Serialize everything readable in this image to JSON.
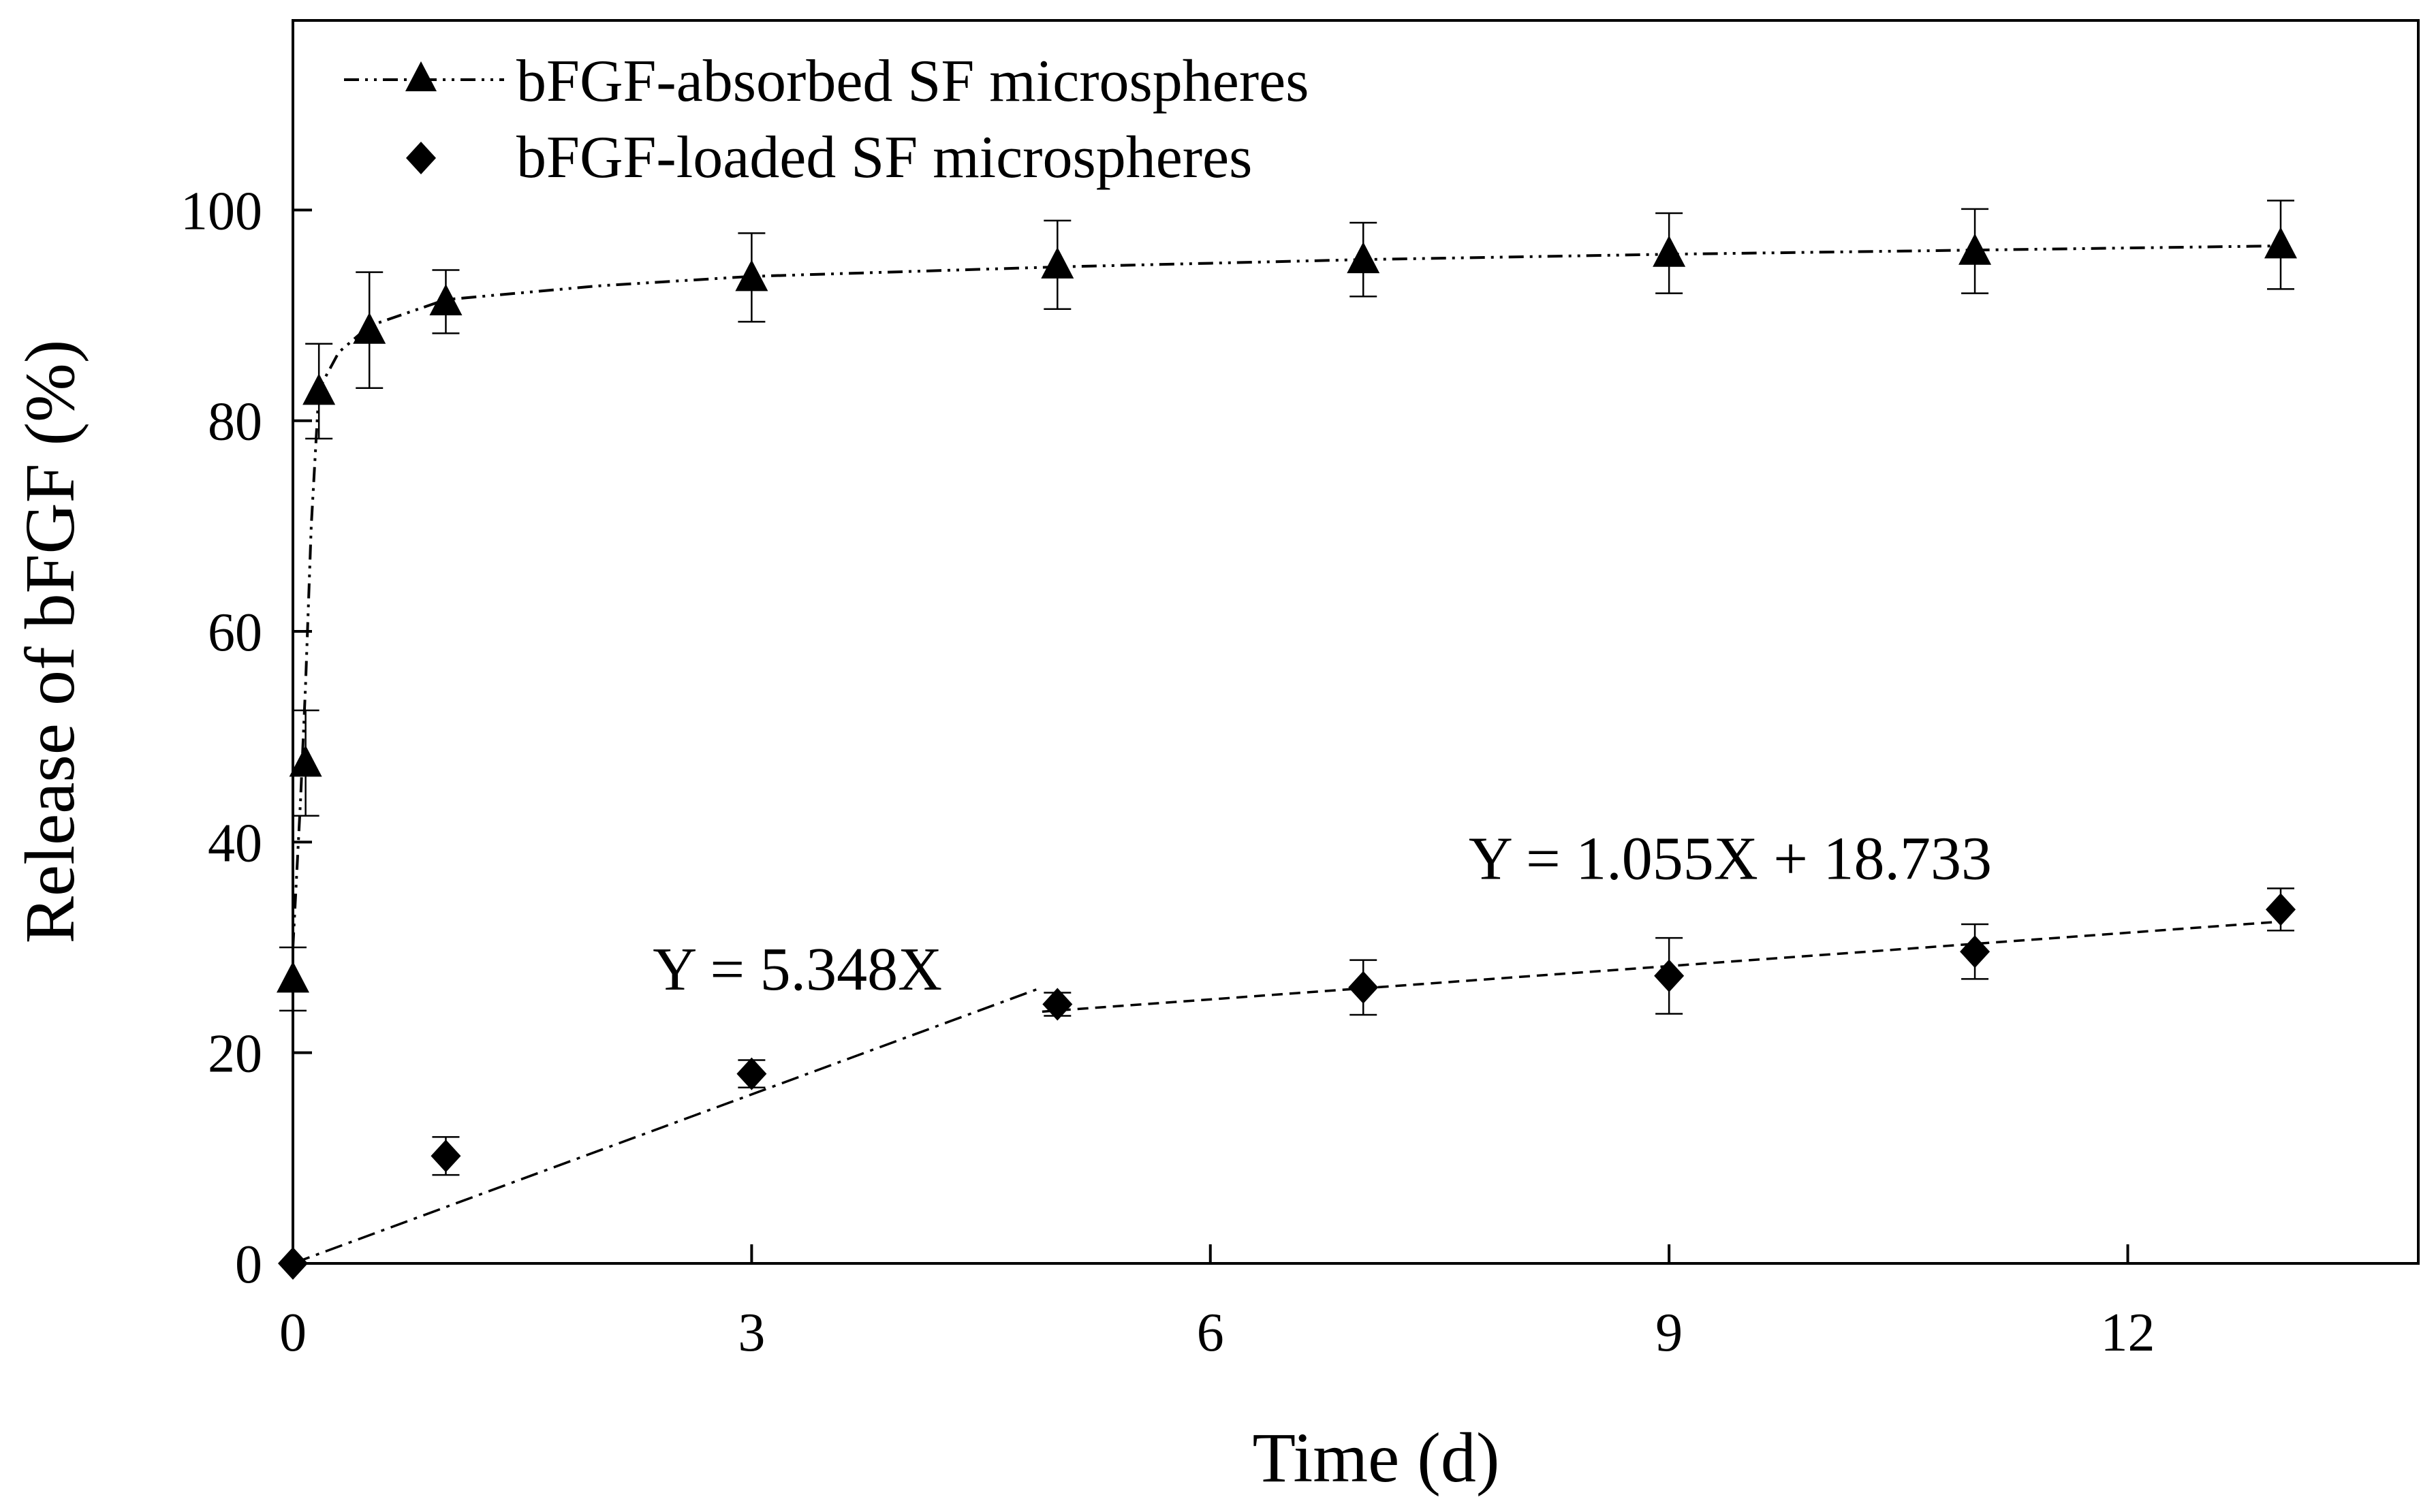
{
  "chart_data": {
    "type": "scatter",
    "title": "",
    "xlabel": "Time (d)",
    "ylabel": "Release of bFGF (%)",
    "xlim": [
      0,
      13.9
    ],
    "ylim": [
      0,
      118
    ],
    "x_ticks": [
      0,
      3,
      6,
      9,
      12
    ],
    "y_ticks": [
      0,
      20,
      40,
      60,
      80,
      100
    ],
    "grid": false,
    "legend_position": "top-left",
    "series": [
      {
        "name": "bFGF-absorbed SF microspheres",
        "marker": "triangle",
        "line_style": "dash-dot-dot",
        "points": [
          {
            "x": 0,
            "y": 27,
            "err": 3
          },
          {
            "x": 0.083,
            "y": 47.5,
            "err": 5
          },
          {
            "x": 0.17,
            "y": 82.8,
            "err": 4.5
          },
          {
            "x": 0.5,
            "y": 88.6,
            "err": 5.5
          },
          {
            "x": 1,
            "y": 91.3,
            "err": 3
          },
          {
            "x": 3,
            "y": 93.6,
            "err": 4.2
          },
          {
            "x": 5,
            "y": 94.8,
            "err": 4.2
          },
          {
            "x": 7,
            "y": 95.3,
            "err": 3.5
          },
          {
            "x": 9,
            "y": 95.9,
            "err": 3.8
          },
          {
            "x": 11,
            "y": 96.1,
            "err": 4
          },
          {
            "x": 13,
            "y": 96.7,
            "err": 4.2
          }
        ],
        "fit_curve": [
          [
            0,
            30
          ],
          [
            0.05,
            44
          ],
          [
            0.083,
            55
          ],
          [
            0.12,
            70
          ],
          [
            0.17,
            83
          ],
          [
            0.3,
            86.5
          ],
          [
            0.5,
            89
          ],
          [
            1,
            91.5
          ],
          [
            2,
            92.8
          ],
          [
            3,
            93.7
          ],
          [
            5,
            94.6
          ],
          [
            7,
            95.3
          ],
          [
            9,
            95.8
          ],
          [
            11,
            96.2
          ],
          [
            13,
            96.6
          ]
        ]
      },
      {
        "name": "bFGF-loaded SF microspheres",
        "marker": "diamond",
        "points": [
          {
            "x": 0,
            "y": 0,
            "err": 0
          },
          {
            "x": 1,
            "y": 10.2,
            "err": 1.8
          },
          {
            "x": 3,
            "y": 18,
            "err": 1.3
          },
          {
            "x": 5,
            "y": 24.6,
            "err": 1.1
          },
          {
            "x": 7,
            "y": 26.2,
            "err": 2.6
          },
          {
            "x": 9,
            "y": 27.3,
            "err": 3.6
          },
          {
            "x": 11,
            "y": 29.6,
            "err": 2.6
          },
          {
            "x": 13,
            "y": 33.6,
            "err": 2
          }
        ],
        "fit_lines": [
          {
            "equation": "Y = 5.348X",
            "style": "dash-dot",
            "x_range": [
              0,
              4.9
            ]
          },
          {
            "equation": "Y = 1.055X + 18.733",
            "style": "dashed",
            "x_range": [
              4.9,
              13
            ]
          }
        ]
      }
    ],
    "annotations": [
      {
        "text": "Y = 5.348X",
        "x": 3.3,
        "y": 26
      },
      {
        "text": "Y = 1.055X + 18.733",
        "x": 9.4,
        "y": 36.5
      }
    ]
  }
}
